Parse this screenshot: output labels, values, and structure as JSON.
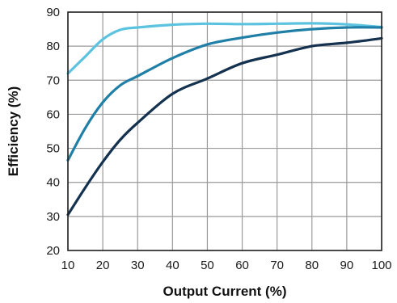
{
  "chart_data": {
    "type": "line",
    "title": "",
    "xlabel": "Output Current (%)",
    "ylabel": "Efficiency (%)",
    "xlim": [
      10,
      100
    ],
    "ylim": [
      20,
      90
    ],
    "x_ticks": [
      10,
      20,
      30,
      40,
      50,
      60,
      70,
      80,
      90,
      100
    ],
    "y_ticks": [
      20,
      30,
      40,
      50,
      60,
      70,
      80,
      90
    ],
    "grid": true,
    "legend": "none",
    "series": [
      {
        "color": "#5bc3e0",
        "x": [
          10,
          15,
          20,
          25,
          30,
          40,
          50,
          60,
          70,
          80,
          90,
          100
        ],
        "values": [
          72,
          77,
          82,
          84.8,
          85.5,
          86.3,
          86.6,
          86.5,
          86.6,
          86.7,
          86.4,
          85.6
        ]
      },
      {
        "color": "#1f7fa6",
        "x": [
          10,
          15,
          20,
          25,
          30,
          40,
          50,
          60,
          70,
          80,
          90,
          100
        ],
        "values": [
          46.5,
          56,
          63.5,
          68.5,
          71.2,
          76.5,
          80.5,
          82.5,
          84,
          85,
          85.5,
          85.5
        ]
      },
      {
        "color": "#14324f",
        "x": [
          10,
          15,
          20,
          25,
          30,
          40,
          50,
          60,
          70,
          80,
          90,
          100
        ],
        "values": [
          30.5,
          38.5,
          46,
          52.5,
          57.5,
          66,
          70.5,
          75,
          77.5,
          80,
          81,
          82.3
        ]
      }
    ]
  }
}
